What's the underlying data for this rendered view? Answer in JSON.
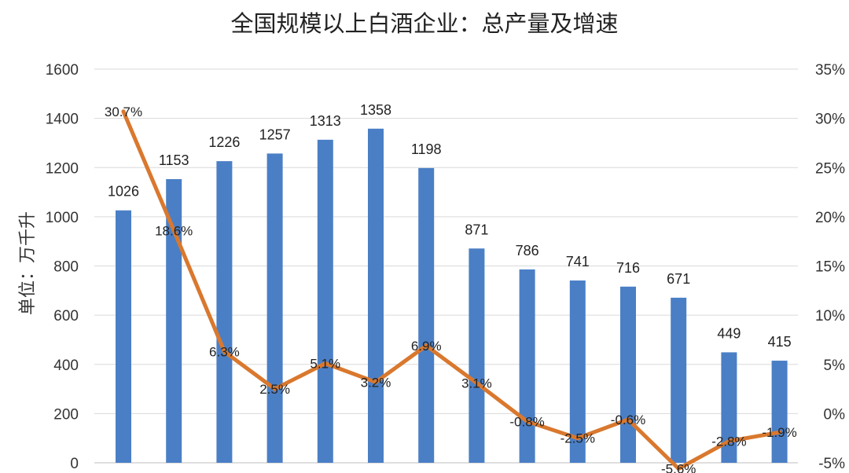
{
  "chart_data": {
    "type": "bar",
    "title": "全国规模以上白酒企业：总产量及增速",
    "ylabel": "单位：万千升",
    "ylim": [
      0,
      1600
    ],
    "y2lim": [
      -5,
      35
    ],
    "left_ticks": [
      "0",
      "200",
      "400",
      "600",
      "800",
      "1000",
      "1200",
      "1400",
      "1600"
    ],
    "right_ticks": [
      "-5%",
      "0%",
      "5%",
      "10%",
      "15%",
      "20%",
      "25%",
      "30%",
      "35%"
    ],
    "grid": true,
    "colors": {
      "bars": "#4a7fc6",
      "line": "#d9782e"
    },
    "series": [
      {
        "type": "bar",
        "axis": "left",
        "values": [
          1026,
          1153,
          1226,
          1257,
          1313,
          1358,
          1198,
          871,
          786,
          741,
          716,
          671,
          449,
          415
        ]
      },
      {
        "type": "line",
        "axis": "right",
        "values": [
          30.7,
          18.6,
          6.3,
          2.5,
          5.1,
          3.2,
          6.9,
          3.1,
          -0.8,
          -2.5,
          -0.6,
          -5.6,
          -2.8,
          -1.9
        ],
        "labels": [
          "30.7%",
          "18.6%",
          "6.3%",
          "2.5%",
          "5.1%",
          "3.2%",
          "6.9%",
          "3.1%",
          "-0.8%",
          "-2.5%",
          "-0.6%",
          "-5.6%",
          "-2.8%",
          "-1.9%"
        ]
      }
    ]
  }
}
